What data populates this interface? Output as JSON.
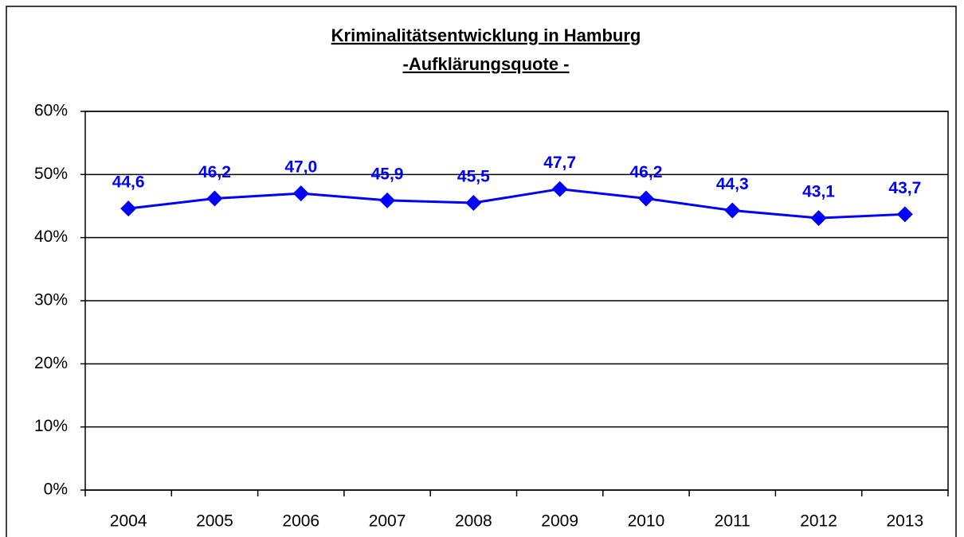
{
  "chart_data": {
    "type": "line",
    "title": "Kriminalitätsentwicklung in Hamburg",
    "subtitle": "-Aufklärungsquote -",
    "categories": [
      "2004",
      "2005",
      "2006",
      "2007",
      "2008",
      "2009",
      "2010",
      "2011",
      "2012",
      "2013"
    ],
    "series": [
      {
        "name": "Aufklärungsquote",
        "color": "#0000ff",
        "values": [
          44.6,
          46.2,
          47.0,
          45.9,
          45.5,
          47.7,
          46.2,
          44.3,
          43.1,
          43.7
        ],
        "value_labels": [
          "44,6",
          "46,2",
          "47,0",
          "45,9",
          "45,5",
          "47,7",
          "46,2",
          "44,3",
          "43,1",
          "43,7"
        ]
      }
    ],
    "ylim": [
      0,
      60
    ],
    "yticks": [
      {
        "value": 0,
        "label": "0%"
      },
      {
        "value": 10,
        "label": "10%"
      },
      {
        "value": 20,
        "label": "20%"
      },
      {
        "value": 30,
        "label": "30%"
      },
      {
        "value": 40,
        "label": "40%"
      },
      {
        "value": 50,
        "label": "50%"
      },
      {
        "value": 60,
        "label": "60%"
      }
    ],
    "grid": true
  }
}
